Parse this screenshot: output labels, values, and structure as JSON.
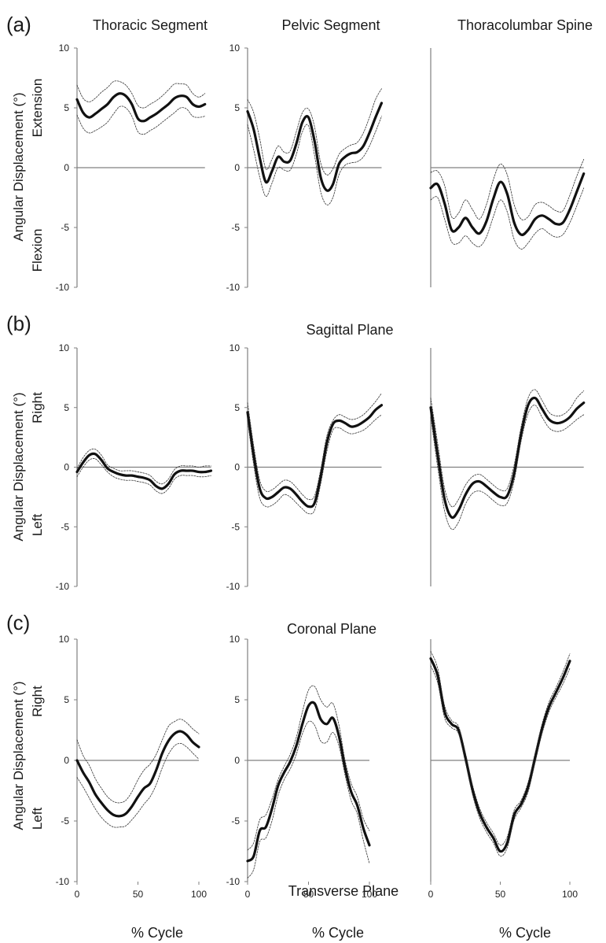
{
  "figure": {
    "column_titles": [
      "Thoracic Segment",
      "Pelvic Segment",
      "Thoracolumbar Spine"
    ],
    "row_letters": [
      "(a)",
      "(b)",
      "(c)"
    ],
    "row_ylabels": [
      {
        "main": "Angular Displacement (°)",
        "pos": "Extension",
        "neg": "Flexion"
      },
      {
        "main": "Angular Displacement (°)",
        "pos": "Right",
        "neg": "Left"
      },
      {
        "main": "Angular Displacement (°)",
        "pos": "Right",
        "neg": "Left"
      }
    ],
    "plane_labels": [
      "Sagittal Plane",
      "Coronal Plane",
      "Transverse Plane"
    ],
    "x_label": "% Cycle",
    "colors": {
      "mean": "#111111",
      "band": "#333333",
      "axis": "#808080"
    }
  },
  "chart_data": [
    {
      "type": "line",
      "row": 0,
      "col": 0,
      "ylim": [
        -10,
        10
      ],
      "yticks": [
        10,
        5,
        0,
        -5,
        -10
      ],
      "xlim": [
        0,
        105
      ],
      "x": [
        0,
        5,
        10,
        15,
        20,
        25,
        30,
        35,
        40,
        45,
        50,
        55,
        60,
        65,
        70,
        75,
        80,
        85,
        90,
        95,
        100,
        105
      ],
      "series": [
        {
          "role": "mean",
          "values": [
            5.7,
            4.6,
            4.2,
            4.5,
            4.9,
            5.3,
            5.9,
            6.2,
            6.0,
            5.3,
            4.1,
            3.9,
            4.2,
            4.5,
            4.9,
            5.3,
            5.8,
            6.0,
            5.9,
            5.3,
            5.1,
            5.3
          ]
        },
        {
          "role": "upper",
          "values": [
            6.9,
            5.8,
            5.5,
            5.8,
            6.3,
            6.7,
            7.2,
            7.2,
            6.9,
            6.2,
            5.2,
            5.0,
            5.3,
            5.6,
            6.0,
            6.5,
            7.0,
            7.0,
            6.9,
            6.2,
            5.9,
            6.2
          ]
        },
        {
          "role": "lower",
          "values": [
            4.4,
            3.3,
            2.9,
            3.1,
            3.4,
            3.8,
            4.5,
            5.1,
            5.0,
            4.3,
            3.0,
            2.8,
            3.1,
            3.4,
            3.8,
            4.2,
            4.6,
            5.0,
            4.9,
            4.3,
            4.2,
            4.3
          ]
        }
      ]
    },
    {
      "type": "line",
      "row": 0,
      "col": 1,
      "ylim": [
        -10,
        10
      ],
      "yticks": [
        10,
        5,
        0,
        -5,
        -10
      ],
      "xlim": [
        0,
        110
      ],
      "x": [
        0,
        5,
        10,
        15,
        20,
        25,
        30,
        35,
        40,
        45,
        50,
        55,
        60,
        65,
        70,
        75,
        80,
        85,
        90,
        95,
        100,
        105,
        110
      ],
      "series": [
        {
          "role": "mean",
          "values": [
            4.7,
            3.2,
            0.8,
            -1.2,
            -0.3,
            0.9,
            0.5,
            0.6,
            2.0,
            3.8,
            4.2,
            2.2,
            -0.8,
            -1.9,
            -1.4,
            0.3,
            0.9,
            1.2,
            1.3,
            1.8,
            2.9,
            4.2,
            5.4
          ]
        },
        {
          "role": "upper",
          "values": [
            5.7,
            4.6,
            2.4,
            -0.1,
            0.7,
            1.8,
            1.3,
            1.4,
            3.0,
            4.6,
            4.9,
            3.4,
            0.4,
            -0.6,
            -0.1,
            1.1,
            1.6,
            1.9,
            2.1,
            2.9,
            4.2,
            5.7,
            6.6
          ]
        },
        {
          "role": "lower",
          "values": [
            3.6,
            1.5,
            -0.8,
            -2.4,
            -1.3,
            0.0,
            -0.2,
            -0.2,
            1.1,
            3.0,
            3.5,
            1.0,
            -2.0,
            -3.1,
            -2.5,
            -0.6,
            0.2,
            0.4,
            0.5,
            0.9,
            1.8,
            3.0,
            4.3
          ]
        }
      ]
    },
    {
      "type": "line",
      "row": 0,
      "col": 2,
      "ylim": [
        -10,
        10
      ],
      "yticks": [],
      "xlim": [
        0,
        110
      ],
      "x": [
        0,
        5,
        10,
        15,
        20,
        25,
        30,
        35,
        40,
        45,
        50,
        55,
        60,
        65,
        70,
        75,
        80,
        85,
        90,
        95,
        100,
        105,
        110
      ],
      "series": [
        {
          "role": "mean",
          "values": [
            -1.7,
            -1.4,
            -3.0,
            -5.2,
            -5.0,
            -4.2,
            -5.0,
            -5.5,
            -4.5,
            -2.6,
            -1.2,
            -2.2,
            -4.6,
            -5.6,
            -5.2,
            -4.3,
            -4.0,
            -4.3,
            -4.7,
            -4.6,
            -3.5,
            -2.0,
            -0.5
          ]
        },
        {
          "role": "upper",
          "values": [
            -0.4,
            -0.3,
            -1.5,
            -4.1,
            -3.8,
            -2.7,
            -3.5,
            -4.3,
            -3.1,
            -1.0,
            0.3,
            -0.6,
            -3.1,
            -4.3,
            -4.1,
            -3.1,
            -2.9,
            -3.2,
            -3.6,
            -3.6,
            -2.3,
            -0.7,
            0.7
          ]
        },
        {
          "role": "lower",
          "values": [
            -2.7,
            -2.5,
            -4.3,
            -6.2,
            -6.3,
            -5.7,
            -6.3,
            -6.6,
            -5.8,
            -4.1,
            -2.7,
            -3.7,
            -6.0,
            -6.8,
            -6.3,
            -5.5,
            -5.1,
            -5.5,
            -5.8,
            -5.6,
            -4.6,
            -3.2,
            -1.7
          ]
        }
      ]
    },
    {
      "type": "line",
      "row": 1,
      "col": 0,
      "ylim": [
        -10,
        10
      ],
      "yticks": [
        10,
        5,
        0,
        -5,
        -10
      ],
      "xlim": [
        0,
        110
      ],
      "x": [
        0,
        5,
        10,
        15,
        20,
        25,
        30,
        35,
        40,
        45,
        50,
        55,
        60,
        65,
        70,
        75,
        80,
        85,
        90,
        95,
        100,
        105,
        110
      ],
      "series": [
        {
          "role": "mean",
          "values": [
            -0.4,
            0.4,
            1.0,
            1.1,
            0.6,
            -0.1,
            -0.4,
            -0.6,
            -0.7,
            -0.7,
            -0.8,
            -0.9,
            -1.1,
            -1.6,
            -1.8,
            -1.4,
            -0.6,
            -0.3,
            -0.3,
            -0.3,
            -0.4,
            -0.4,
            -0.3
          ]
        },
        {
          "role": "upper",
          "values": [
            -0.1,
            0.8,
            1.4,
            1.5,
            1.0,
            0.2,
            -0.1,
            -0.3,
            -0.3,
            -0.3,
            -0.4,
            -0.5,
            -0.7,
            -1.2,
            -1.4,
            -1.0,
            -0.2,
            0.1,
            0.1,
            0.1,
            0.0,
            0.1,
            0.1
          ]
        },
        {
          "role": "lower",
          "values": [
            -0.8,
            0.0,
            0.6,
            0.7,
            0.2,
            -0.4,
            -0.8,
            -1.0,
            -1.1,
            -1.1,
            -1.2,
            -1.3,
            -1.5,
            -2.0,
            -2.2,
            -1.8,
            -1.0,
            -0.7,
            -0.7,
            -0.7,
            -0.8,
            -0.8,
            -0.7
          ]
        }
      ]
    },
    {
      "type": "line",
      "row": 1,
      "col": 1,
      "ylim": [
        -10,
        10
      ],
      "yticks": [
        10,
        5,
        0,
        -5,
        -10
      ],
      "xlim": [
        0,
        110
      ],
      "x": [
        0,
        5,
        10,
        15,
        20,
        25,
        30,
        35,
        40,
        45,
        50,
        55,
        60,
        65,
        70,
        75,
        80,
        85,
        90,
        95,
        100,
        105,
        110
      ],
      "series": [
        {
          "role": "mean",
          "values": [
            4.6,
            1.0,
            -1.8,
            -2.6,
            -2.5,
            -2.1,
            -1.7,
            -1.8,
            -2.3,
            -2.9,
            -3.3,
            -3.0,
            -0.8,
            2.0,
            3.6,
            3.9,
            3.7,
            3.4,
            3.5,
            3.8,
            4.2,
            4.8,
            5.2
          ]
        },
        {
          "role": "upper",
          "values": [
            5.4,
            1.8,
            -1.1,
            -2.0,
            -1.9,
            -1.5,
            -1.1,
            -1.2,
            -1.7,
            -2.3,
            -2.7,
            -2.4,
            -0.2,
            2.6,
            3.9,
            4.4,
            4.2,
            4.0,
            4.1,
            4.4,
            4.9,
            5.5,
            6.2
          ]
        },
        {
          "role": "lower",
          "values": [
            3.9,
            0.2,
            -2.6,
            -3.3,
            -3.2,
            -2.8,
            -2.3,
            -2.5,
            -3.0,
            -3.5,
            -3.9,
            -3.6,
            -1.4,
            1.3,
            3.1,
            3.3,
            3.0,
            2.8,
            2.9,
            3.1,
            3.5,
            4.0,
            4.4
          ]
        }
      ]
    },
    {
      "type": "line",
      "row": 1,
      "col": 2,
      "ylim": [
        -10,
        10
      ],
      "yticks": [],
      "xlim": [
        0,
        110
      ],
      "x": [
        0,
        5,
        10,
        15,
        20,
        25,
        30,
        35,
        40,
        45,
        50,
        55,
        60,
        65,
        70,
        75,
        80,
        85,
        90,
        95,
        100,
        105,
        110
      ],
      "series": [
        {
          "role": "mean",
          "values": [
            5.0,
            1.0,
            -2.7,
            -4.2,
            -3.6,
            -2.3,
            -1.4,
            -1.2,
            -1.6,
            -2.1,
            -2.5,
            -2.4,
            -0.5,
            2.8,
            5.2,
            5.8,
            4.9,
            4.0,
            3.7,
            3.8,
            4.2,
            4.9,
            5.4
          ]
        },
        {
          "role": "upper",
          "values": [
            5.8,
            2.0,
            -1.8,
            -3.3,
            -2.7,
            -1.5,
            -0.8,
            -0.6,
            -1.0,
            -1.5,
            -1.9,
            -1.8,
            0.2,
            3.4,
            5.8,
            6.5,
            5.6,
            4.6,
            4.3,
            4.4,
            4.9,
            5.8,
            6.4
          ]
        },
        {
          "role": "lower",
          "values": [
            4.2,
            0.0,
            -3.7,
            -5.2,
            -4.6,
            -3.1,
            -2.2,
            -2.0,
            -2.3,
            -2.8,
            -3.2,
            -3.0,
            -1.1,
            2.2,
            4.5,
            5.2,
            4.2,
            3.3,
            3.0,
            3.1,
            3.5,
            4.0,
            4.4
          ]
        }
      ]
    },
    {
      "type": "line",
      "row": 2,
      "col": 0,
      "ylim": [
        -10,
        10
      ],
      "yticks": [
        10,
        5,
        0,
        -5,
        -10
      ],
      "xlim": [
        0,
        100
      ],
      "xticks": [
        0,
        50,
        100
      ],
      "x": [
        0,
        5,
        10,
        15,
        20,
        25,
        30,
        35,
        40,
        45,
        50,
        55,
        60,
        65,
        70,
        75,
        80,
        85,
        90,
        95,
        100
      ],
      "series": [
        {
          "role": "mean",
          "values": [
            0.0,
            -1.0,
            -1.8,
            -2.8,
            -3.5,
            -4.1,
            -4.5,
            -4.6,
            -4.4,
            -3.8,
            -3.0,
            -2.3,
            -1.9,
            -0.8,
            0.6,
            1.6,
            2.2,
            2.4,
            2.1,
            1.5,
            1.1
          ]
        },
        {
          "role": "upper",
          "values": [
            1.7,
            0.4,
            -0.4,
            -1.5,
            -2.3,
            -3.0,
            -3.4,
            -3.5,
            -3.3,
            -2.6,
            -1.6,
            -0.8,
            -0.3,
            0.5,
            1.7,
            2.8,
            3.2,
            3.4,
            3.1,
            2.6,
            2.2
          ]
        },
        {
          "role": "lower",
          "values": [
            -1.4,
            -2.2,
            -3.1,
            -4.0,
            -4.7,
            -5.2,
            -5.5,
            -5.5,
            -5.4,
            -4.9,
            -4.3,
            -3.6,
            -3.0,
            -2.0,
            -0.6,
            0.5,
            1.2,
            1.4,
            1.1,
            0.6,
            0.1
          ]
        }
      ]
    },
    {
      "type": "line",
      "row": 2,
      "col": 1,
      "ylim": [
        -10,
        10
      ],
      "yticks": [
        10,
        5,
        0,
        -5,
        -10
      ],
      "xlim": [
        0,
        100
      ],
      "xticks": [
        0,
        50,
        100
      ],
      "x": [
        0,
        5,
        10,
        15,
        20,
        25,
        30,
        35,
        40,
        45,
        50,
        55,
        60,
        65,
        70,
        75,
        80,
        85,
        90,
        95,
        100
      ],
      "series": [
        {
          "role": "mean",
          "values": [
            -8.3,
            -7.9,
            -5.8,
            -5.5,
            -4.0,
            -2.1,
            -1.0,
            -0.1,
            1.2,
            3.0,
            4.5,
            4.7,
            3.4,
            3.0,
            3.5,
            2.0,
            -0.6,
            -2.6,
            -3.7,
            -5.6,
            -7.0
          ]
        },
        {
          "role": "upper",
          "values": [
            -7.4,
            -6.8,
            -4.9,
            -4.5,
            -3.2,
            -1.6,
            -0.5,
            0.5,
            1.9,
            4.0,
            5.8,
            6.1,
            5.0,
            4.4,
            4.7,
            2.9,
            0.0,
            -1.9,
            -3.0,
            -4.8,
            -5.8
          ]
        },
        {
          "role": "lower",
          "values": [
            -9.7,
            -9.0,
            -6.7,
            -6.4,
            -5.0,
            -2.9,
            -1.6,
            -0.7,
            0.5,
            2.2,
            3.2,
            2.9,
            1.6,
            1.5,
            2.3,
            1.2,
            -1.2,
            -3.3,
            -4.4,
            -6.6,
            -8.5
          ]
        }
      ]
    },
    {
      "type": "line",
      "row": 2,
      "col": 2,
      "ylim": [
        -10,
        10
      ],
      "yticks": [],
      "xlim": [
        0,
        100
      ],
      "xticks": [
        0,
        50,
        100
      ],
      "x": [
        0,
        5,
        10,
        15,
        20,
        25,
        30,
        35,
        40,
        45,
        50,
        55,
        60,
        65,
        70,
        75,
        80,
        85,
        90,
        95,
        100
      ],
      "series": [
        {
          "role": "mean",
          "values": [
            8.4,
            7.0,
            4.0,
            3.0,
            2.5,
            0.2,
            -2.4,
            -4.3,
            -5.5,
            -6.4,
            -7.5,
            -6.8,
            -4.5,
            -3.6,
            -2.2,
            0.2,
            2.6,
            4.4,
            5.6,
            6.8,
            8.2
          ]
        },
        {
          "role": "upper",
          "values": [
            9.0,
            7.6,
            4.5,
            3.3,
            2.8,
            0.6,
            -2.0,
            -3.9,
            -5.1,
            -6.0,
            -7.0,
            -6.3,
            -4.1,
            -3.3,
            -1.8,
            0.6,
            3.0,
            4.8,
            6.0,
            7.3,
            8.8
          ]
        },
        {
          "role": "lower",
          "values": [
            7.8,
            6.4,
            3.5,
            2.7,
            2.2,
            -0.2,
            -2.8,
            -4.7,
            -5.9,
            -6.8,
            -7.9,
            -7.2,
            -4.9,
            -3.9,
            -2.6,
            -0.2,
            2.2,
            4.0,
            5.2,
            6.3,
            7.6
          ]
        }
      ]
    }
  ]
}
